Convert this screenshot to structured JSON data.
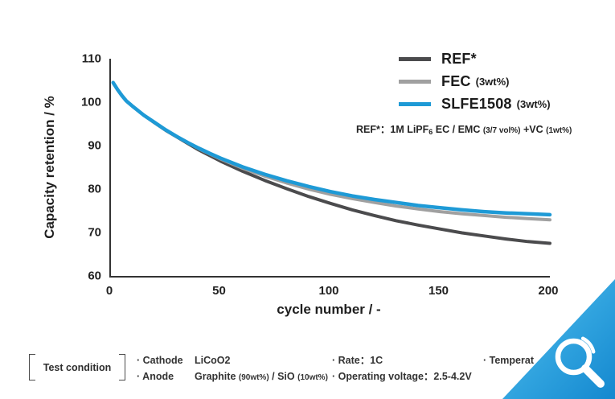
{
  "colors": {
    "ref_line": "#4b4b4d",
    "fec_line": "#a0a0a0",
    "slfe_line": "#1e9ad6",
    "axis": "#333333",
    "text": "#1f1f1f",
    "corner_gradient_start": "#5ec3ee",
    "corner_gradient_mid": "#2fa2de",
    "corner_gradient_end": "#1488cf",
    "magnifier": "#ffffff"
  },
  "chart_data": {
    "type": "line",
    "title": "",
    "xlabel": "cycle number / -",
    "ylabel": "Capacity retention / %",
    "xlim": [
      0,
      200
    ],
    "ylim": [
      60,
      110
    ],
    "xticks": [
      0,
      50,
      100,
      150,
      200
    ],
    "yticks": [
      60,
      70,
      80,
      90,
      100,
      110
    ],
    "grid": false,
    "legend_position": "top-right",
    "x": [
      1,
      3,
      5,
      7,
      10,
      15,
      20,
      25,
      30,
      35,
      40,
      45,
      50,
      60,
      70,
      80,
      90,
      100,
      110,
      120,
      130,
      140,
      150,
      160,
      170,
      180,
      190,
      200
    ],
    "series": [
      {
        "key": "ref",
        "name": "REF*",
        "color": "#4b4b4d",
        "width": 4,
        "values": [
          104.5,
          102.9,
          101.5,
          100.3,
          99.0,
          97.0,
          95.2,
          93.5,
          92.0,
          90.5,
          89.0,
          87.7,
          86.4,
          84.1,
          82.0,
          80.1,
          78.3,
          76.7,
          75.2,
          73.9,
          72.7,
          71.7,
          70.8,
          69.9,
          69.2,
          68.5,
          67.9,
          67.5
        ]
      },
      {
        "key": "fec",
        "name": "FEC (3wt%)",
        "color": "#a0a0a0",
        "width": 4,
        "values": [
          104.5,
          102.9,
          101.5,
          100.3,
          99.0,
          97.0,
          95.3,
          93.6,
          92.1,
          90.7,
          89.3,
          88.1,
          86.9,
          84.8,
          83.0,
          81.4,
          80.0,
          78.8,
          77.8,
          76.9,
          76.1,
          75.4,
          74.8,
          74.3,
          73.9,
          73.5,
          73.2,
          72.9
        ]
      },
      {
        "key": "slfe1508",
        "name": "SLFE1508 (3wt%)",
        "color": "#1e9ad6",
        "width": 4.5,
        "values": [
          104.5,
          102.9,
          101.5,
          100.3,
          99.0,
          97.0,
          95.3,
          93.6,
          92.1,
          90.7,
          89.4,
          88.2,
          87.1,
          85.1,
          83.4,
          81.9,
          80.6,
          79.4,
          78.4,
          77.6,
          76.9,
          76.2,
          75.7,
          75.2,
          74.8,
          74.5,
          74.3,
          74.1
        ]
      }
    ]
  },
  "legend": {
    "entries": [
      {
        "label": "REF*",
        "note": "",
        "color": "#4b4b4d"
      },
      {
        "label": "FEC",
        "note": "(3wt%)",
        "color": "#a0a0a0"
      },
      {
        "label": "SLFE1508",
        "note": "(3wt%)",
        "color": "#1e9ad6"
      }
    ]
  },
  "note": {
    "part1": "REF*：1M LiPF",
    "sub": "6",
    "part2": " EC / EMC ",
    "small1": "(3/7 vol%)",
    "part3": " +VC ",
    "small2": "(1wt%)"
  },
  "conditions": {
    "box_label": "Test condition",
    "cathode_label": "· Cathode",
    "cathode_value": "LiCoO2",
    "anode_label": "· Anode",
    "anode_value_1": "Graphite ",
    "anode_value_small_1": "(90wt%)",
    "anode_value_2": " / SiO ",
    "anode_value_small_2": "(10wt%)",
    "rate": "· Rate：1C",
    "voltage": "· Operating voltage：2.5-4.2V",
    "temperature_partial": "· Temperat"
  },
  "corner": {
    "icon": "magnifier-icon"
  }
}
